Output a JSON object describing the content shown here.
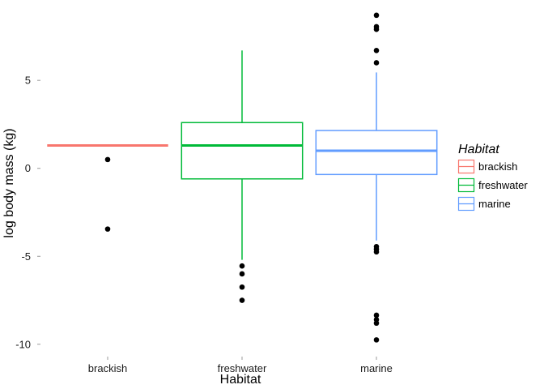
{
  "chart_data": {
    "type": "box",
    "xlabel": "Habitat",
    "ylabel": "log body mass (kg)",
    "ylim": [
      -10.7,
      9.2
    ],
    "yticks": [
      -10,
      -5,
      0,
      5
    ],
    "grid": false,
    "legend": {
      "title": "Habitat",
      "position": "right",
      "entries": [
        "brackish",
        "freshwater",
        "marine"
      ]
    },
    "categories": [
      "brackish",
      "freshwater",
      "marine"
    ],
    "colors": {
      "brackish": "#F8766D",
      "freshwater": "#00BA38",
      "marine": "#619CFF"
    },
    "boxes": [
      {
        "name": "brackish",
        "min": 1.3,
        "q1": 1.3,
        "median": 1.3,
        "q3": 1.3,
        "max": 1.3,
        "outliers": [
          0.5,
          -3.45
        ]
      },
      {
        "name": "freshwater",
        "min": -5.2,
        "q1": -0.6,
        "median": 1.3,
        "q3": 2.6,
        "max": 6.7,
        "outliers": [
          -5.55,
          -6.0,
          -6.75,
          -7.5
        ]
      },
      {
        "name": "marine",
        "min": -4.1,
        "q1": -0.35,
        "median": 1.0,
        "q3": 2.15,
        "max": 5.45,
        "outliers": [
          8.7,
          8.05,
          7.9,
          6.7,
          6.0,
          -4.45,
          -4.6,
          -4.75,
          -8.35,
          -8.6,
          -8.8,
          -9.75
        ]
      }
    ]
  }
}
